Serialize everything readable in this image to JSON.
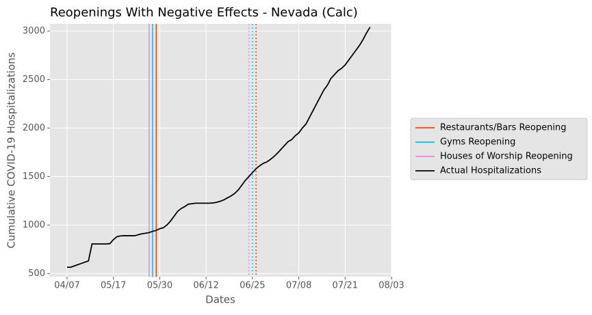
{
  "chart_data": {
    "type": "line",
    "title": "Reopenings With Negative Effects - Nevada (Calc)",
    "x_label": "Dates",
    "y_label": "Cumulative COVID-19 Hospitalizations",
    "categories": [
      "04/07",
      null,
      null,
      null,
      null,
      null,
      null,
      null,
      null,
      null,
      null,
      null,
      null,
      "05/17",
      null,
      null,
      null,
      null,
      null,
      null,
      null,
      null,
      null,
      null,
      null,
      null,
      "05/30",
      null,
      null,
      null,
      null,
      null,
      null,
      null,
      null,
      null,
      null,
      null,
      null,
      "06/12",
      null,
      null,
      null,
      null,
      null,
      null,
      null,
      null,
      null,
      null,
      null,
      null,
      "06/25",
      null,
      null,
      null,
      null,
      null,
      null,
      null,
      null,
      null,
      null,
      null,
      null,
      "07/08",
      null,
      null,
      null,
      null,
      null,
      null,
      null,
      null,
      null,
      null,
      null,
      null,
      "07/21",
      null,
      null,
      null,
      null,
      null,
      null,
      null,
      null,
      null,
      null,
      null,
      null,
      "08/03"
    ],
    "series": [
      {
        "name": "Actual Hospitalizations",
        "color": "#000000",
        "values": [
          565,
          565,
          578,
          591,
          604,
          617,
          630,
          805,
          805,
          805,
          805,
          805,
          808,
          850,
          880,
          888,
          890,
          890,
          890,
          890,
          900,
          910,
          915,
          922,
          935,
          945,
          962,
          972,
          1000,
          1040,
          1090,
          1140,
          1170,
          1190,
          1215,
          1220,
          1225,
          1225,
          1225,
          1225,
          1225,
          1228,
          1235,
          1245,
          1260,
          1280,
          1300,
          1325,
          1360,
          1410,
          1460,
          1500,
          1540,
          1580,
          1610,
          1635,
          1650,
          1675,
          1705,
          1740,
          1780,
          1820,
          1860,
          1880,
          1920,
          1950,
          2000,
          2040,
          2110,
          2180,
          2250,
          2320,
          2390,
          2440,
          2510,
          2550,
          2590,
          2615,
          2650,
          2700,
          2750,
          2800,
          2850,
          2910,
          2980,
          3040,
          null,
          null,
          null,
          null,
          null,
          null
        ]
      }
    ],
    "reopenings": [
      {
        "name": "Restaurants/Bars Reopening",
        "color": "#ff4500",
        "positions": [
          25,
          53
        ]
      },
      {
        "name": "Gyms Reopening",
        "color": "#00bfff",
        "positions": [
          24,
          52
        ]
      },
      {
        "name": "Houses of Worship Reopening",
        "color": "#ee82ee",
        "positions": [
          23,
          51
        ]
      }
    ],
    "reopening_styles": [
      "solid",
      "dotted"
    ],
    "ylim": [
      467,
      3073
    ],
    "yticks": [
      500,
      1000,
      1500,
      2000,
      2500,
      3000
    ],
    "grid": true
  }
}
